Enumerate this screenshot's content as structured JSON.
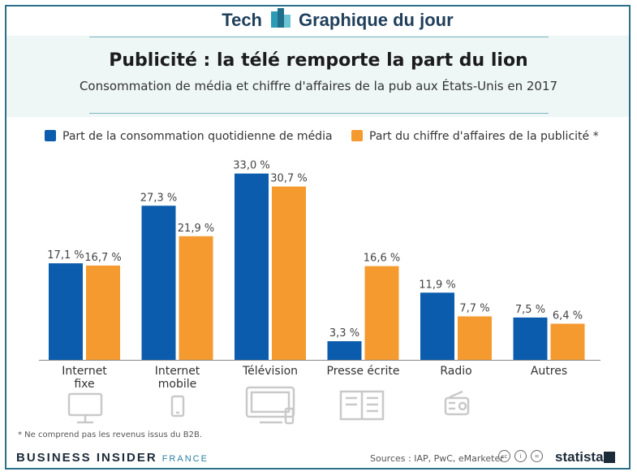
{
  "header": {
    "brand_left": "Tech",
    "brand_right": "Graphique du jour"
  },
  "title": "Publicité : la télé remporte la part du lion",
  "subtitle": "Consommation de média et chiffre d'affaires de la pub aux États-Unis en 2017",
  "legend": [
    {
      "label": "Part de la consommation quotidienne de média",
      "color": "#0b5cad"
    },
    {
      "label": "Part du chiffre d'affaires de la publicité *",
      "color": "#f59a2e"
    }
  ],
  "chart_data": {
    "type": "bar",
    "title": "Publicité : la télé remporte la part du lion",
    "subtitle": "Consommation de média et chiffre d'affaires de la pub aux États-Unis en 2017",
    "categories": [
      [
        "Internet",
        "fixe"
      ],
      [
        "Internet",
        "mobile"
      ],
      [
        "Télévision"
      ],
      [
        "Presse écrite"
      ],
      [
        "Radio"
      ],
      [
        "Autres"
      ]
    ],
    "series": [
      {
        "name": "Part de la consommation quotidienne de média",
        "color": "#0b5cad",
        "values": [
          17.1,
          27.3,
          33.0,
          3.3,
          11.9,
          7.5
        ],
        "labels": [
          "17,1 %",
          "27,3 %",
          "33,0 %",
          "3,3 %",
          "11,9 %",
          "7,5 %"
        ]
      },
      {
        "name": "Part du chiffre d'affaires de la publicité *",
        "color": "#f59a2e",
        "values": [
          16.7,
          21.9,
          30.7,
          16.6,
          7.7,
          6.4
        ],
        "labels": [
          "16,7 %",
          "21,9 %",
          "30,7 %",
          "16,6 %",
          "7,7 %",
          "6,4 %"
        ]
      }
    ],
    "ylim": [
      0,
      35
    ],
    "grid": false,
    "legend_position": "top-left"
  },
  "icons": [
    "desktop-icon",
    "smartphone-icon",
    "television-icon",
    "newspaper-icon",
    "radio-icon"
  ],
  "footnote": "* Ne comprend pas les revenus issus du B2B.",
  "footer": {
    "publisher": "BUSINESS INSIDER",
    "edition": "FRANCE",
    "sources": "Sources : IAP, PwC, eMarketer",
    "logo": "statista"
  }
}
